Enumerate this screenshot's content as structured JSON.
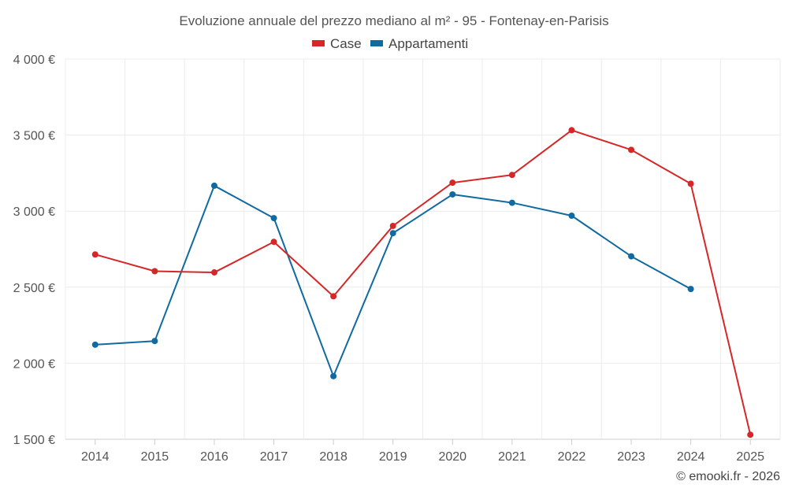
{
  "chart_data": {
    "type": "line",
    "title": "Evoluzione annuale del prezzo mediano al m² - 95 - Fontenay-en-Parisis",
    "categories": [
      "2014",
      "2015",
      "2016",
      "2017",
      "2018",
      "2019",
      "2020",
      "2021",
      "2022",
      "2023",
      "2024",
      "2025"
    ],
    "y_ticks": [
      "1 500 €",
      "2 000 €",
      "2 500 €",
      "3 000 €",
      "3 500 €",
      "4 000 €"
    ],
    "ylim": [
      1500,
      4000
    ],
    "grid": true,
    "legend_position": "top-center",
    "series": [
      {
        "name": "Case",
        "color": "#d62728",
        "values": [
          2715,
          2605,
          2597,
          2798,
          2440,
          2903,
          3187,
          3238,
          3532,
          3403,
          3180,
          1530
        ]
      },
      {
        "name": "Appartamenti",
        "color": "#106aa2",
        "values": [
          2122,
          2146,
          3167,
          2954,
          1915,
          2855,
          3110,
          3055,
          2970,
          2703,
          2488,
          null
        ]
      }
    ]
  },
  "credit": "© emooki.fr - 2026"
}
